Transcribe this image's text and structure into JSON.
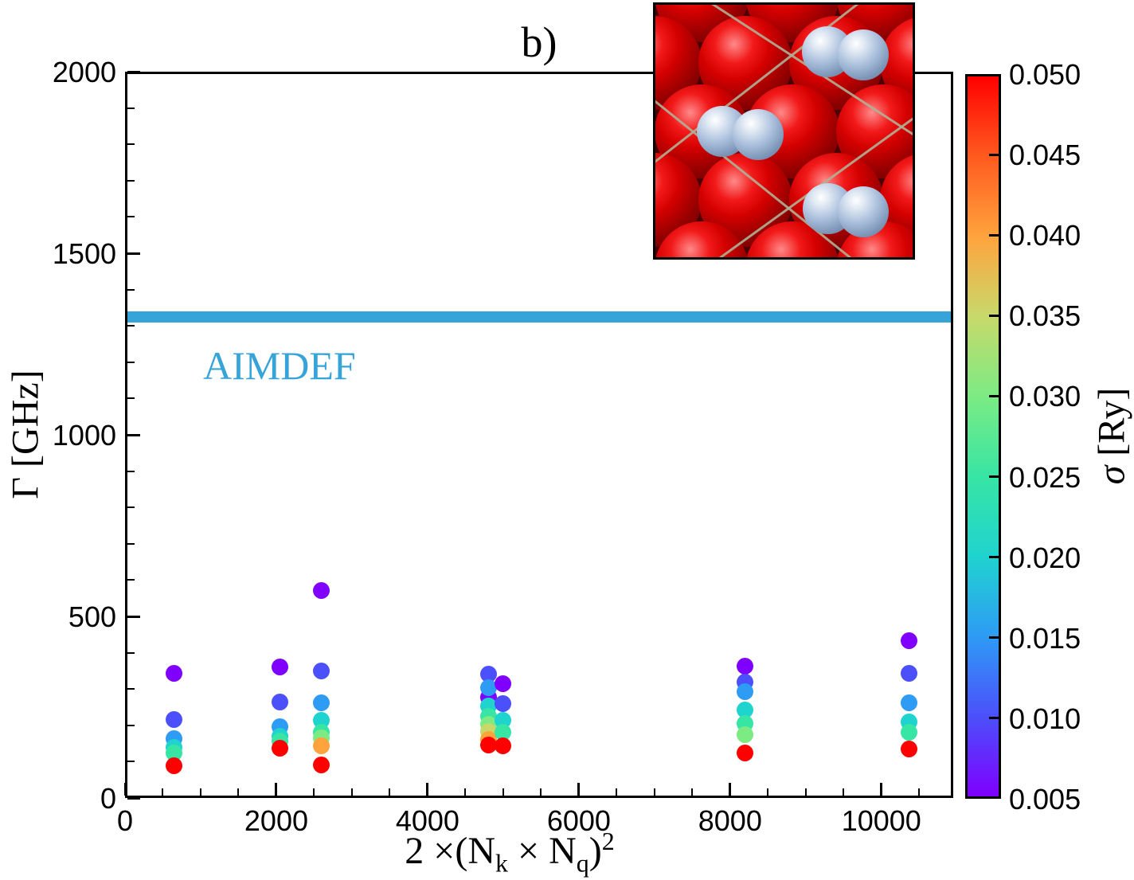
{
  "chart_data": {
    "type": "scatter",
    "title": "b)",
    "ylabel": "Γ [GHz]",
    "xlabel": {
      "lead": "2 ×(N",
      "sub_k": "k",
      "times": " × N",
      "sub_q": "q",
      "close": ")",
      "power": "2"
    },
    "xlim": [
      0,
      10950
    ],
    "ylim": [
      0,
      2000
    ],
    "grid": false,
    "x_major_ticks": [
      {
        "v": 0,
        "label": "0"
      },
      {
        "v": 2000,
        "label": "2000"
      },
      {
        "v": 4000,
        "label": "4000"
      },
      {
        "v": 6000,
        "label": "6000"
      },
      {
        "v": 8000,
        "label": "8000"
      },
      {
        "v": 10000,
        "label": "10000"
      }
    ],
    "x_minor_step": 500,
    "y_major_ticks": [
      {
        "v": 0,
        "label": "0"
      },
      {
        "v": 500,
        "label": "500"
      },
      {
        "v": 1000,
        "label": "1000"
      },
      {
        "v": 1500,
        "label": "1500"
      },
      {
        "v": 2000,
        "label": "2000"
      }
    ],
    "y_minor_step": 100,
    "reference_line": {
      "label": "AIMDEF",
      "value_ghz": 1325,
      "band_halfwidth_ghz": 15,
      "color": "#36a3d9"
    },
    "colorbar": {
      "label_sigma": "σ",
      "label_units": " [Ry]",
      "min": 0.005,
      "max": 0.05,
      "tick_values": [
        0.05,
        0.045,
        0.04,
        0.035,
        0.03,
        0.025,
        0.02,
        0.015,
        0.01,
        0.005
      ],
      "tick_labels": [
        "0.050",
        "0.045",
        "0.040",
        "0.035",
        "0.030",
        "0.025",
        "0.020",
        "0.015",
        "0.010",
        "0.005"
      ],
      "gradient_stops": [
        {
          "t": 0.0,
          "c": "#7f00ff"
        },
        {
          "t": 0.111,
          "c": "#4b50fa"
        },
        {
          "t": 0.222,
          "c": "#2e9bf5"
        },
        {
          "t": 0.333,
          "c": "#1fd3cf"
        },
        {
          "t": 0.444,
          "c": "#37e5a4"
        },
        {
          "t": 0.556,
          "c": "#7ceb84"
        },
        {
          "t": 0.667,
          "c": "#c8d96a"
        },
        {
          "t": 0.778,
          "c": "#ffa33d"
        },
        {
          "t": 0.889,
          "c": "#ff5a1f"
        },
        {
          "t": 1.0,
          "c": "#ff0000"
        }
      ]
    },
    "marker_diameter_px": 21,
    "series": [
      {
        "x": 648,
        "points": [
          {
            "sigma": 0.005,
            "gamma": 344
          },
          {
            "sigma": 0.01,
            "gamma": 215
          },
          {
            "sigma": 0.015,
            "gamma": 164
          },
          {
            "sigma": 0.02,
            "gamma": 140
          },
          {
            "sigma": 0.025,
            "gamma": 123
          },
          {
            "sigma": 0.05,
            "gamma": 88
          }
        ]
      },
      {
        "x": 2048,
        "points": [
          {
            "sigma": 0.005,
            "gamma": 360
          },
          {
            "sigma": 0.01,
            "gamma": 265
          },
          {
            "sigma": 0.015,
            "gamma": 197
          },
          {
            "sigma": 0.02,
            "gamma": 171
          },
          {
            "sigma": 0.025,
            "gamma": 156
          },
          {
            "sigma": 0.05,
            "gamma": 138
          }
        ]
      },
      {
        "x": 2592,
        "points": [
          {
            "sigma": 0.005,
            "gamma": 572
          },
          {
            "sigma": 0.01,
            "gamma": 349
          },
          {
            "sigma": 0.015,
            "gamma": 261
          },
          {
            "sigma": 0.02,
            "gamma": 213
          },
          {
            "sigma": 0.025,
            "gamma": 180
          },
          {
            "sigma": 0.03,
            "gamma": 165
          },
          {
            "sigma": 0.04,
            "gamma": 143
          },
          {
            "sigma": 0.05,
            "gamma": 92
          }
        ]
      },
      {
        "x": 4802,
        "points": [
          {
            "sigma": 0.005,
            "gamma": 278
          },
          {
            "sigma": 0.01,
            "gamma": 340
          },
          {
            "sigma": 0.015,
            "gamma": 303
          },
          {
            "sigma": 0.02,
            "gamma": 254
          },
          {
            "sigma": 0.025,
            "gamma": 224
          },
          {
            "sigma": 0.03,
            "gamma": 202
          },
          {
            "sigma": 0.035,
            "gamma": 184
          },
          {
            "sigma": 0.04,
            "gamma": 162
          },
          {
            "sigma": 0.05,
            "gamma": 145
          }
        ]
      },
      {
        "x": 5000,
        "points": [
          {
            "sigma": 0.005,
            "gamma": 314
          },
          {
            "sigma": 0.01,
            "gamma": 259
          },
          {
            "sigma": 0.02,
            "gamma": 213
          },
          {
            "sigma": 0.025,
            "gamma": 180
          },
          {
            "sigma": 0.05,
            "gamma": 143
          }
        ]
      },
      {
        "x": 8192,
        "points": [
          {
            "sigma": 0.005,
            "gamma": 362
          },
          {
            "sigma": 0.01,
            "gamma": 318
          },
          {
            "sigma": 0.015,
            "gamma": 292
          },
          {
            "sigma": 0.02,
            "gamma": 243
          },
          {
            "sigma": 0.025,
            "gamma": 206
          },
          {
            "sigma": 0.03,
            "gamma": 175
          },
          {
            "sigma": 0.05,
            "gamma": 125
          }
        ]
      },
      {
        "x": 10368,
        "points": [
          {
            "sigma": 0.005,
            "gamma": 434
          },
          {
            "sigma": 0.01,
            "gamma": 344
          },
          {
            "sigma": 0.015,
            "gamma": 261
          },
          {
            "sigma": 0.02,
            "gamma": 210
          },
          {
            "sigma": 0.025,
            "gamma": 180
          },
          {
            "sigma": 0.05,
            "gamma": 134
          }
        ]
      }
    ]
  },
  "inset": {
    "background": "#4a0005",
    "red_atom_color": "#d40000",
    "adsorbate_atom_color": "#aabfdc",
    "lattice_line_color": "#b0b096"
  }
}
